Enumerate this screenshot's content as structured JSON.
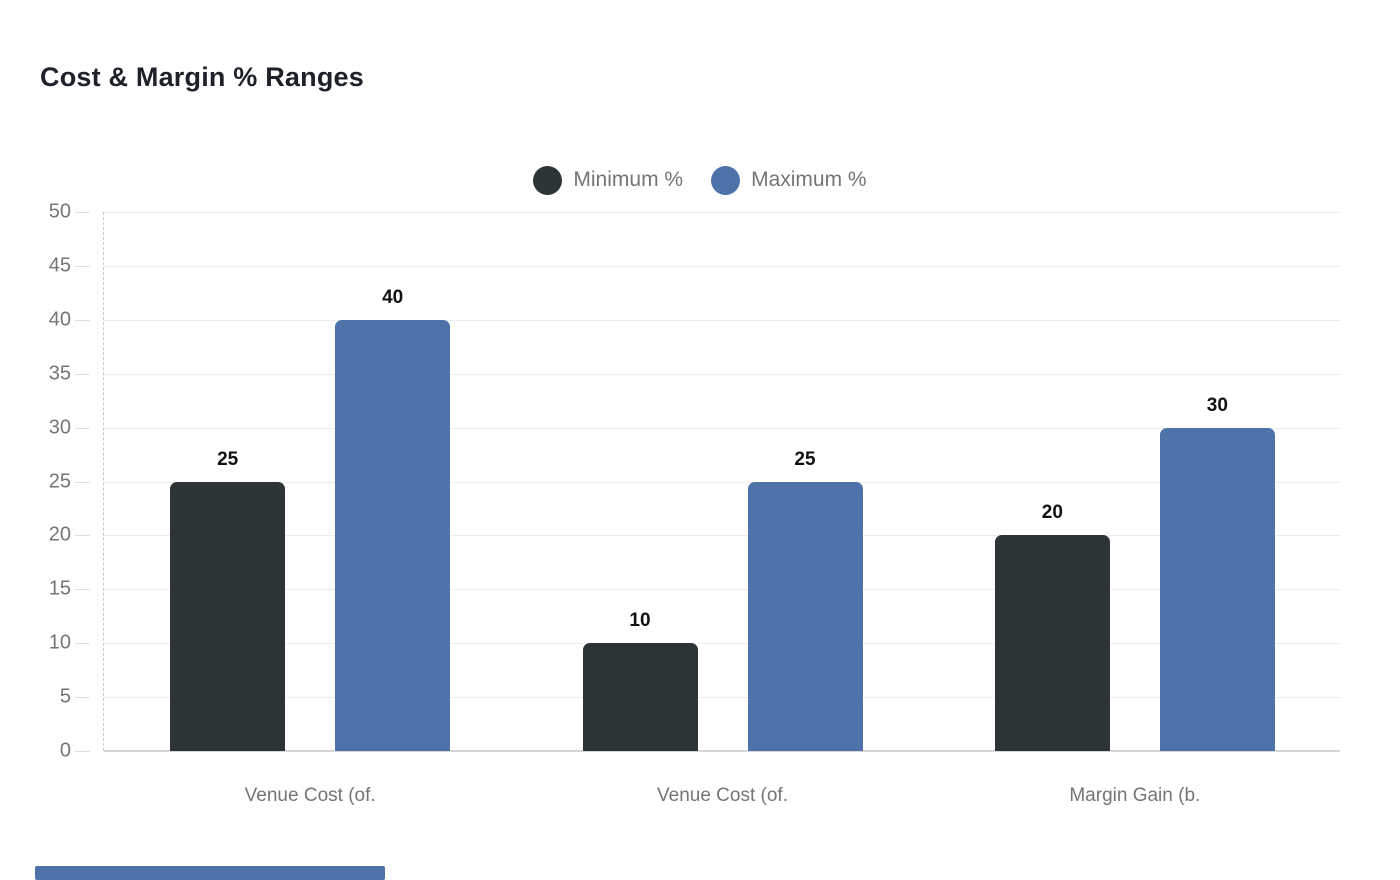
{
  "header": {
    "title": "Cost & Margin % Ranges"
  },
  "chart_data": {
    "type": "bar",
    "title": "Cost & Margin % Ranges",
    "categories": [
      "Venue Cost (of.",
      "Venue Cost (of.",
      "Margin Gain (b."
    ],
    "series": [
      {
        "name": "Minimum %",
        "color": "#2d3436",
        "values": [
          25,
          10,
          20
        ]
      },
      {
        "name": "Maximum %",
        "color": "#4e73a9",
        "values": [
          40,
          25,
          30
        ]
      }
    ],
    "ylim": [
      0,
      50
    ],
    "yticks": [
      0,
      5,
      10,
      15,
      20,
      25,
      30,
      35,
      40,
      45,
      50
    ],
    "grid": true,
    "legend_position": "top-center",
    "value_labels": true,
    "xlabel": "",
    "ylabel": ""
  },
  "scrollbar": {
    "color": "#4e73a9"
  },
  "style_colors": {
    "title_text": "#1d2129",
    "axis_text": "#757575",
    "gridline": "#ededed",
    "baseline": "#d6d6d6",
    "value_label_text": "#111111"
  }
}
